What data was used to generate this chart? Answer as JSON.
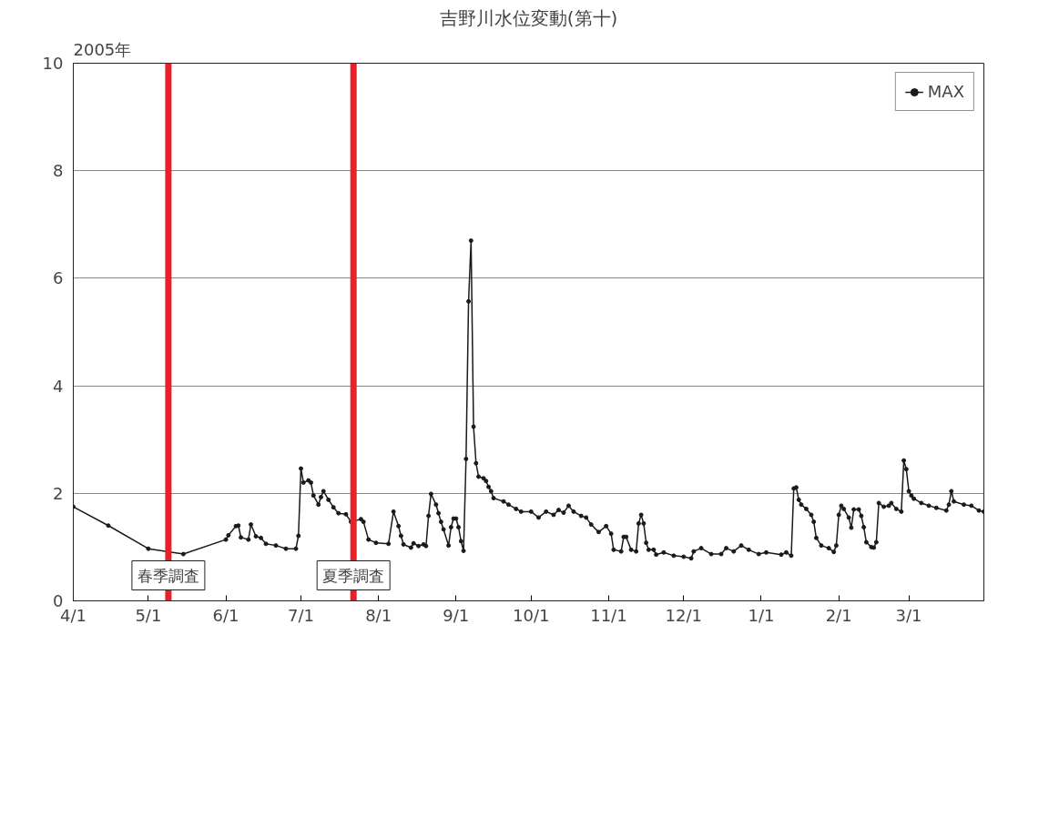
{
  "chart_data": {
    "type": "line",
    "title": "吉野川水位変動(第十)",
    "annotations": [
      "2005年"
    ],
    "x": [
      "2005-04-01",
      "2005-04-15",
      "2005-05-01",
      "2005-05-15",
      "2005-06-01",
      "2005-06-02",
      "2005-06-05",
      "2005-06-06",
      "2005-06-07",
      "2005-06-10",
      "2005-06-11",
      "2005-06-13",
      "2005-06-15",
      "2005-06-17",
      "2005-06-21",
      "2005-06-25",
      "2005-06-29",
      "2005-06-30",
      "2005-07-01",
      "2005-07-02",
      "2005-07-04",
      "2005-07-05",
      "2005-07-06",
      "2005-07-08",
      "2005-07-09",
      "2005-07-10",
      "2005-07-12",
      "2005-07-14",
      "2005-07-16",
      "2005-07-19",
      "2005-07-21",
      "2005-07-25",
      "2005-07-26",
      "2005-07-28",
      "2005-07-31",
      "2005-08-05",
      "2005-08-07",
      "2005-08-09",
      "2005-08-10",
      "2005-08-11",
      "2005-08-14",
      "2005-08-15",
      "2005-08-17",
      "2005-08-19",
      "2005-08-20",
      "2005-08-21",
      "2005-08-22",
      "2005-08-24",
      "2005-08-25",
      "2005-08-26",
      "2005-08-27",
      "2005-08-29",
      "2005-08-30",
      "2005-08-31",
      "2005-09-01",
      "2005-09-02",
      "2005-09-03",
      "2005-09-04",
      "2005-09-05",
      "2005-09-06",
      "2005-09-07",
      "2005-09-08",
      "2005-09-09",
      "2005-09-10",
      "2005-09-12",
      "2005-09-13",
      "2005-09-14",
      "2005-09-15",
      "2005-09-16",
      "2005-09-20",
      "2005-09-22",
      "2005-09-25",
      "2005-09-27",
      "2005-10-01",
      "2005-10-04",
      "2005-10-07",
      "2005-10-10",
      "2005-10-12",
      "2005-10-14",
      "2005-10-16",
      "2005-10-18",
      "2005-10-21",
      "2005-10-23",
      "2005-10-25",
      "2005-10-28",
      "2005-10-31",
      "2005-11-02",
      "2005-11-03",
      "2005-11-06",
      "2005-11-07",
      "2005-11-08",
      "2005-11-10",
      "2005-11-12",
      "2005-11-13",
      "2005-11-14",
      "2005-11-15",
      "2005-11-16",
      "2005-11-17",
      "2005-11-19",
      "2005-11-20",
      "2005-11-23",
      "2005-11-27",
      "2005-12-01",
      "2005-12-04",
      "2005-12-05",
      "2005-12-08",
      "2005-12-12",
      "2005-12-16",
      "2005-12-18",
      "2005-12-21",
      "2005-12-24",
      "2005-12-27",
      "2005-12-31",
      "2006-01-03",
      "2006-01-09",
      "2006-01-11",
      "2006-01-13",
      "2006-01-14",
      "2006-01-15",
      "2006-01-16",
      "2006-01-17",
      "2006-01-19",
      "2006-01-21",
      "2006-01-22",
      "2006-01-23",
      "2006-01-25",
      "2006-01-28",
      "2006-01-30",
      "2006-01-31",
      "2006-02-01",
      "2006-02-02",
      "2006-02-03",
      "2006-02-05",
      "2006-02-06",
      "2006-02-07",
      "2006-02-09",
      "2006-02-10",
      "2006-02-11",
      "2006-02-12",
      "2006-02-14",
      "2006-02-15",
      "2006-02-16",
      "2006-02-17",
      "2006-02-19",
      "2006-02-21",
      "2006-02-22",
      "2006-02-24",
      "2006-02-26",
      "2006-02-27",
      "2006-02-28",
      "2006-03-01",
      "2006-03-02",
      "2006-03-03",
      "2006-03-06",
      "2006-03-09",
      "2006-03-12",
      "2006-03-16",
      "2006-03-17",
      "2006-03-18",
      "2006-03-19",
      "2006-03-23",
      "2006-03-26",
      "2006-03-29",
      "2006-03-31"
    ],
    "series": [
      {
        "name": "MAX",
        "color": "#1a1a1a",
        "values": [
          1.75,
          1.4,
          0.97,
          0.87,
          1.14,
          1.22,
          1.39,
          1.4,
          1.18,
          1.14,
          1.42,
          1.2,
          1.17,
          1.06,
          1.03,
          0.97,
          0.97,
          1.21,
          2.46,
          2.2,
          2.24,
          2.2,
          1.96,
          1.79,
          1.93,
          2.04,
          1.88,
          1.74,
          1.63,
          1.61,
          1.47,
          1.52,
          1.47,
          1.14,
          1.08,
          1.06,
          1.66,
          1.39,
          1.21,
          1.05,
          0.99,
          1.07,
          1.02,
          1.05,
          1.02,
          1.58,
          1.99,
          1.79,
          1.63,
          1.47,
          1.33,
          1.03,
          1.37,
          1.53,
          1.53,
          1.37,
          1.11,
          0.93,
          2.64,
          5.57,
          6.7,
          3.24,
          2.56,
          2.31,
          2.28,
          2.23,
          2.12,
          2.04,
          1.91,
          1.85,
          1.79,
          1.71,
          1.66,
          1.66,
          1.55,
          1.66,
          1.6,
          1.69,
          1.64,
          1.77,
          1.66,
          1.58,
          1.55,
          1.42,
          1.28,
          1.39,
          1.25,
          0.95,
          0.92,
          1.19,
          1.19,
          0.95,
          0.92,
          1.44,
          1.6,
          1.44,
          1.08,
          0.95,
          0.95,
          0.86,
          0.9,
          0.84,
          0.82,
          0.79,
          0.92,
          0.98,
          0.87,
          0.87,
          0.98,
          0.92,
          1.03,
          0.95,
          0.87,
          0.9,
          0.86,
          0.9,
          0.84,
          2.09,
          2.11,
          1.88,
          1.79,
          1.71,
          1.6,
          1.47,
          1.17,
          1.03,
          0.98,
          0.91,
          1.03,
          1.6,
          1.77,
          1.71,
          1.55,
          1.36,
          1.7,
          1.7,
          1.58,
          1.37,
          1.09,
          1.0,
          0.99,
          1.09,
          1.82,
          1.75,
          1.77,
          1.82,
          1.71,
          1.66,
          2.61,
          2.45,
          2.04,
          1.96,
          1.9,
          1.82,
          1.77,
          1.73,
          1.68,
          1.79,
          2.04,
          1.85,
          1.79,
          1.77,
          1.68,
          1.66
        ]
      }
    ],
    "xlim": [
      "2005-04-01",
      "2006-03-31"
    ],
    "xticks": [
      {
        "value": "2005-04-01",
        "label": "4/1"
      },
      {
        "value": "2005-05-01",
        "label": "5/1"
      },
      {
        "value": "2005-06-01",
        "label": "6/1"
      },
      {
        "value": "2005-07-01",
        "label": "7/1"
      },
      {
        "value": "2005-08-01",
        "label": "8/1"
      },
      {
        "value": "2005-09-01",
        "label": "9/1"
      },
      {
        "value": "2005-10-01",
        "label": "10/1"
      },
      {
        "value": "2005-11-01",
        "label": "11/1"
      },
      {
        "value": "2005-12-01",
        "label": "12/1"
      },
      {
        "value": "2006-01-01",
        "label": "1/1"
      },
      {
        "value": "2006-02-01",
        "label": "2/1"
      },
      {
        "value": "2006-03-01",
        "label": "3/1"
      }
    ],
    "ylim": [
      0,
      10
    ],
    "yticks": [
      0,
      2,
      4,
      6,
      8,
      10
    ],
    "ref_lines": [
      {
        "axis": "x",
        "value": "2005-05-09",
        "label": "春季調査",
        "color": "#e8202a"
      },
      {
        "axis": "x",
        "value": "2005-07-22",
        "label": "夏季調査",
        "color": "#e8202a"
      }
    ],
    "grid": "y",
    "legend": "top right",
    "marker": "circle",
    "line_style": "solid"
  }
}
